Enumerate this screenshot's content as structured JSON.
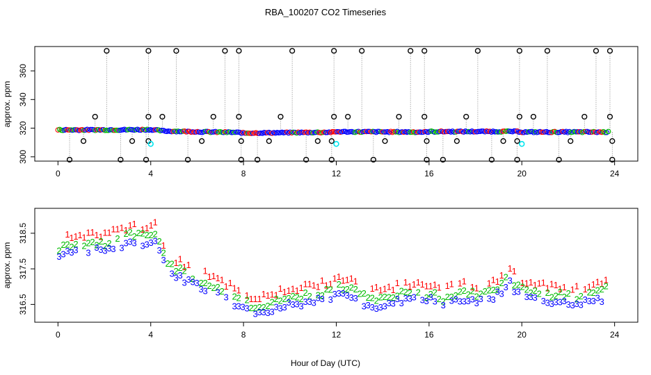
{
  "chart_data": [
    {
      "type": "scatter",
      "title": "RBA_100207  CO2 Timeseries",
      "xlabel": "",
      "ylabel": "approx. ppm",
      "xlim": [
        -1.0,
        25.0
      ],
      "ylim": [
        297,
        377
      ],
      "xticks": [
        "0",
        "4",
        "8",
        "12",
        "16",
        "20",
        "24"
      ],
      "yticks": [
        "300",
        "320",
        "340",
        "360"
      ],
      "baseline_ppm": [
        [
          0.0,
          318.8
        ],
        [
          2.0,
          318.8
        ],
        [
          4.0,
          319.0
        ],
        [
          4.6,
          318.0
        ],
        [
          6.0,
          317.5
        ],
        [
          7.8,
          317.0
        ],
        [
          8.0,
          316.6
        ],
        [
          10.0,
          316.9
        ],
        [
          11.9,
          317.2
        ],
        [
          12.0,
          317.5
        ],
        [
          15.9,
          317.3
        ],
        [
          16.0,
          317.6
        ],
        [
          19.8,
          317.7
        ],
        [
          20.0,
          317.3
        ],
        [
          23.8,
          317.3
        ]
      ],
      "calibration_spikes": [
        {
          "x": 2.1,
          "y": 374
        },
        {
          "x": 3.9,
          "y": 374
        },
        {
          "x": 5.1,
          "y": 374
        },
        {
          "x": 7.2,
          "y": 374
        },
        {
          "x": 7.8,
          "y": 374
        },
        {
          "x": 10.1,
          "y": 374
        },
        {
          "x": 11.9,
          "y": 374
        },
        {
          "x": 13.1,
          "y": 374
        },
        {
          "x": 15.2,
          "y": 374
        },
        {
          "x": 15.8,
          "y": 374
        },
        {
          "x": 18.1,
          "y": 374
        },
        {
          "x": 19.9,
          "y": 374
        },
        {
          "x": 21.1,
          "y": 374
        },
        {
          "x": 23.2,
          "y": 374
        },
        {
          "x": 23.8,
          "y": 374
        }
      ],
      "calibration_lows": [
        {
          "x": 0.5,
          "y": 298
        },
        {
          "x": 2.7,
          "y": 298
        },
        {
          "x": 3.8,
          "y": 298
        },
        {
          "x": 5.6,
          "y": 298
        },
        {
          "x": 7.9,
          "y": 298
        },
        {
          "x": 8.6,
          "y": 298
        },
        {
          "x": 10.7,
          "y": 298
        },
        {
          "x": 11.8,
          "y": 298
        },
        {
          "x": 13.6,
          "y": 298
        },
        {
          "x": 15.9,
          "y": 298
        },
        {
          "x": 16.6,
          "y": 298
        },
        {
          "x": 18.7,
          "y": 298
        },
        {
          "x": 19.8,
          "y": 298
        },
        {
          "x": 21.6,
          "y": 298
        },
        {
          "x": 23.9,
          "y": 298
        }
      ],
      "calibration_mids_high": [
        {
          "x": 1.6,
          "y": 328
        },
        {
          "x": 3.9,
          "y": 328
        },
        {
          "x": 4.5,
          "y": 328
        },
        {
          "x": 6.7,
          "y": 328
        },
        {
          "x": 7.8,
          "y": 328
        },
        {
          "x": 9.6,
          "y": 328
        },
        {
          "x": 11.9,
          "y": 328
        },
        {
          "x": 12.5,
          "y": 328
        },
        {
          "x": 14.7,
          "y": 328
        },
        {
          "x": 15.8,
          "y": 328
        },
        {
          "x": 17.6,
          "y": 328
        },
        {
          "x": 19.9,
          "y": 328
        },
        {
          "x": 20.5,
          "y": 328
        },
        {
          "x": 22.7,
          "y": 328
        },
        {
          "x": 23.8,
          "y": 328
        }
      ],
      "calibration_mids_low": [
        {
          "x": 1.1,
          "y": 311
        },
        {
          "x": 3.2,
          "y": 311
        },
        {
          "x": 3.9,
          "y": 311
        },
        {
          "x": 6.2,
          "y": 311
        },
        {
          "x": 7.9,
          "y": 311
        },
        {
          "x": 9.1,
          "y": 311
        },
        {
          "x": 11.2,
          "y": 311
        },
        {
          "x": 11.8,
          "y": 311
        },
        {
          "x": 14.1,
          "y": 311
        },
        {
          "x": 15.9,
          "y": 311
        },
        {
          "x": 17.2,
          "y": 311
        },
        {
          "x": 19.2,
          "y": 311
        },
        {
          "x": 19.8,
          "y": 311
        },
        {
          "x": 22.1,
          "y": 311
        },
        {
          "x": 23.9,
          "y": 311
        }
      ],
      "cyan_points": [
        {
          "x": 4.0,
          "y": 309
        },
        {
          "x": 12.0,
          "y": 309
        },
        {
          "x": 20.0,
          "y": 309
        }
      ],
      "series_colors": {
        "1": "#ff0000",
        "2": "#00bb00",
        "3": "#0000ff",
        "calib": "#000000",
        "cyan": "#00e5ee",
        "connector": "#9a9a9a"
      }
    },
    {
      "type": "scatter",
      "title": "",
      "xlabel": "Hour of Day (UTC)",
      "ylabel": "approx. ppm",
      "xlim": [
        -1.0,
        25.0
      ],
      "ylim": [
        316.0,
        319.2
      ],
      "xticks": [
        "0",
        "4",
        "8",
        "12",
        "16",
        "20",
        "24"
      ],
      "yticks": [
        "316.5",
        "317.5",
        "318.5"
      ],
      "series": [
        {
          "name": "1",
          "color": "#ff0000",
          "offset": 0.25
        },
        {
          "name": "2",
          "color": "#00bb00",
          "offset": 0.0
        },
        {
          "name": "3",
          "color": "#0000ff",
          "offset": -0.2
        }
      ],
      "mean_profile": [
        [
          0.0,
          318.05
        ],
        [
          0.6,
          318.15
        ],
        [
          1.2,
          318.2
        ],
        [
          2.0,
          318.2
        ],
        [
          2.6,
          318.3
        ],
        [
          3.2,
          318.45
        ],
        [
          3.8,
          318.4
        ],
        [
          4.2,
          318.55
        ],
        [
          4.4,
          318.2
        ],
        [
          4.7,
          317.6
        ],
        [
          5.5,
          317.35
        ],
        [
          6.5,
          317.05
        ],
        [
          7.5,
          316.75
        ],
        [
          8.0,
          316.6
        ],
        [
          8.5,
          316.35
        ],
        [
          9.0,
          316.5
        ],
        [
          10.0,
          316.65
        ],
        [
          11.0,
          316.75
        ],
        [
          11.9,
          316.9
        ],
        [
          12.0,
          317.0
        ],
        [
          12.8,
          316.95
        ],
        [
          13.2,
          316.7
        ],
        [
          14.0,
          316.6
        ],
        [
          14.7,
          316.8
        ],
        [
          15.5,
          316.8
        ],
        [
          15.9,
          316.75
        ],
        [
          16.0,
          316.85
        ],
        [
          16.6,
          316.65
        ],
        [
          17.5,
          316.8
        ],
        [
          18.2,
          316.75
        ],
        [
          18.7,
          316.8
        ],
        [
          19.2,
          317.1
        ],
        [
          19.45,
          317.35
        ],
        [
          19.7,
          317.05
        ],
        [
          19.9,
          316.95
        ],
        [
          20.0,
          316.9
        ],
        [
          20.5,
          316.8
        ],
        [
          21.5,
          316.75
        ],
        [
          22.5,
          316.7
        ],
        [
          23.5,
          316.85
        ],
        [
          23.7,
          316.95
        ]
      ]
    }
  ]
}
